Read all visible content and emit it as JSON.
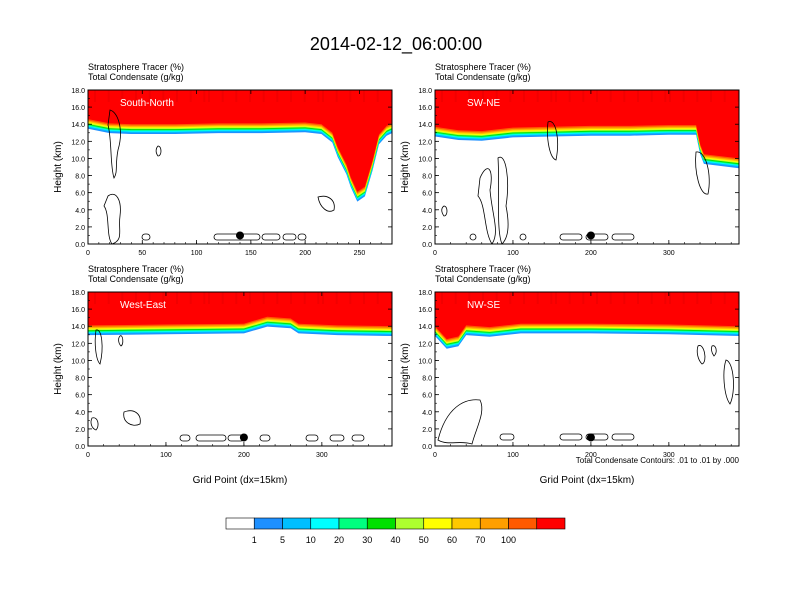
{
  "figure": {
    "title": "2014-02-12_06:00:00",
    "panel_label_line1": "Stratosphere Tracer   (%)",
    "panel_label_line2": "Total Condensate   (g/kg)",
    "contour_note": "Total Condensate Contours: .01 to .01 by .000",
    "marker_color": "#000000"
  },
  "colorbar": {
    "levels": [
      "1",
      "5",
      "10",
      "20",
      "30",
      "40",
      "50",
      "60",
      "70",
      "100"
    ],
    "colors": [
      "#ffffff",
      "#1e90ff",
      "#00bfff",
      "#00ffff",
      "#00ff7f",
      "#00e000",
      "#adff2f",
      "#ffff00",
      "#ffc800",
      "#ff9f00",
      "#ff5a00",
      "#ff0000"
    ]
  },
  "chart_data": [
    {
      "type": "heatmap",
      "panel": "South-North",
      "xlabel": "",
      "ylabel": "Height (km)",
      "xlim": [
        0,
        280
      ],
      "ylim": [
        0,
        18
      ],
      "xticks": [
        "0",
        "50",
        "100",
        "150",
        "200",
        "250"
      ],
      "xtick_values": [
        0,
        50,
        100,
        150,
        200,
        250
      ],
      "yticks": [
        "0.0",
        "2.0",
        "4.0",
        "6.0",
        "8.0",
        "10.0",
        "12.0",
        "14.0",
        "16.0",
        "18.0"
      ],
      "marker": [
        140,
        1.0
      ],
      "tracer_base_km": [
        [
          0,
          16.1
        ],
        [
          20,
          15.6
        ],
        [
          40,
          15.5
        ],
        [
          80,
          15.5
        ],
        [
          120,
          15.6
        ],
        [
          160,
          15.6
        ],
        [
          200,
          15.7
        ],
        [
          215,
          15.5
        ],
        [
          225,
          14.5
        ],
        [
          230,
          12.8
        ],
        [
          238,
          10.8
        ],
        [
          242,
          9.3
        ],
        [
          248,
          7.6
        ],
        [
          255,
          8.2
        ],
        [
          262,
          11.2
        ],
        [
          268,
          14.3
        ],
        [
          275,
          15.3
        ],
        [
          280,
          15.6
        ]
      ]
    },
    {
      "type": "heatmap",
      "panel": "SW-NE",
      "xlabel": "",
      "ylabel": "Height (km)",
      "xlim": [
        0,
        390
      ],
      "ylim": [
        0,
        18
      ],
      "xticks": [
        "0",
        "100",
        "200",
        "300"
      ],
      "xtick_values": [
        0,
        100,
        200,
        300
      ],
      "yticks": [
        "0.0",
        "2.0",
        "4.0",
        "6.0",
        "8.0",
        "10.0",
        "12.0",
        "14.0",
        "16.0",
        "18.0"
      ],
      "marker": [
        200,
        1.0
      ],
      "tracer_base_km": [
        [
          0,
          15.2
        ],
        [
          30,
          14.8
        ],
        [
          60,
          14.7
        ],
        [
          100,
          15.1
        ],
        [
          150,
          15.2
        ],
        [
          200,
          15.3
        ],
        [
          250,
          15.3
        ],
        [
          300,
          15.4
        ],
        [
          335,
          15.4
        ],
        [
          340,
          13.2
        ],
        [
          345,
          12.0
        ],
        [
          390,
          11.5
        ]
      ]
    },
    {
      "type": "heatmap",
      "panel": "West-East",
      "xlabel": "Grid Point (dx=15km)",
      "ylabel": "Height (km)",
      "xlim": [
        0,
        390
      ],
      "ylim": [
        0,
        18
      ],
      "xticks": [
        "0",
        "100",
        "200",
        "300"
      ],
      "xtick_values": [
        0,
        100,
        200,
        300
      ],
      "yticks": [
        "0.0",
        "2.0",
        "4.0",
        "6.0",
        "8.0",
        "10.0",
        "12.0",
        "14.0",
        "16.0",
        "18.0"
      ],
      "marker": [
        200,
        1.0
      ],
      "tracer_base_km": [
        [
          0,
          15.6
        ],
        [
          100,
          15.7
        ],
        [
          200,
          15.8
        ],
        [
          230,
          16.6
        ],
        [
          260,
          16.4
        ],
        [
          270,
          15.8
        ],
        [
          320,
          15.6
        ],
        [
          390,
          15.5
        ]
      ]
    },
    {
      "type": "heatmap",
      "panel": "NW-SE",
      "xlabel": "Grid Point (dx=15km)",
      "ylabel": "Height (km)",
      "xlim": [
        0,
        390
      ],
      "ylim": [
        0,
        18
      ],
      "xticks": [
        "0",
        "100",
        "200",
        "300"
      ],
      "xtick_values": [
        0,
        100,
        200,
        300
      ],
      "yticks": [
        "0.0",
        "2.0",
        "4.0",
        "6.0",
        "8.0",
        "10.0",
        "12.0",
        "14.0",
        "16.0",
        "18.0"
      ],
      "marker": [
        200,
        1.0
      ],
      "tracer_base_km": [
        [
          0,
          15.5
        ],
        [
          15,
          14.0
        ],
        [
          30,
          14.3
        ],
        [
          40,
          15.6
        ],
        [
          70,
          15.4
        ],
        [
          110,
          15.8
        ],
        [
          200,
          15.8
        ],
        [
          300,
          15.7
        ],
        [
          390,
          15.5
        ]
      ]
    }
  ]
}
